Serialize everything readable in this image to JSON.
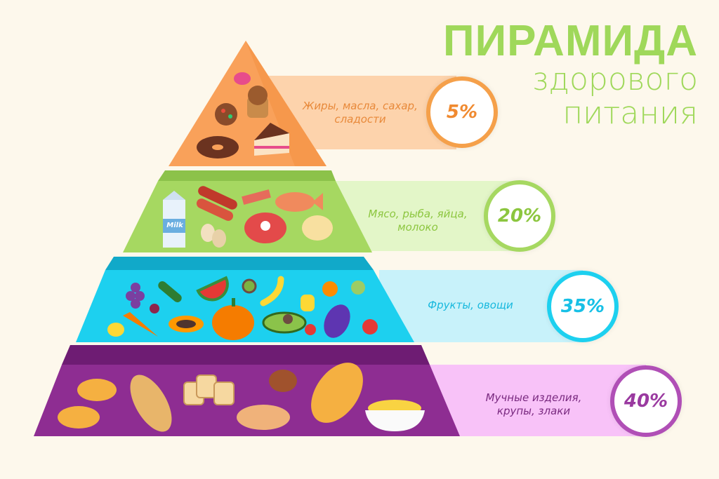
{
  "title": {
    "line1": "ПИРАМИДА",
    "line2": "здорового",
    "line3": "питания"
  },
  "tiers": [
    {
      "label_line1": "Жиры, масла, сахар,",
      "label_line2": "сладости",
      "percent": "5%",
      "value": 5,
      "color": "#f9a15a",
      "band_color": "#fdd3ac",
      "text_color": "#e8893a"
    },
    {
      "label_line1": "Мясо, рыба, яйца,",
      "label_line2": "молоко",
      "percent": "20%",
      "value": 20,
      "color": "#a6d861",
      "band_color": "#e3f6c8",
      "text_color": "#8cc63f"
    },
    {
      "label_line1": "Фрукты, овощи",
      "label_line2": "",
      "percent": "35%",
      "value": 35,
      "color": "#1dd0ef",
      "band_color": "#c8f2fa",
      "text_color": "#17b8dd"
    },
    {
      "label_line1": "Мучные изделия,",
      "label_line2": "крупы, злаки",
      "percent": "40%",
      "value": 40,
      "color": "#8e2d92",
      "band_color": "#f8c2f8",
      "text_color": "#9a3aa0"
    }
  ],
  "milk_carton_text": "Milk"
}
